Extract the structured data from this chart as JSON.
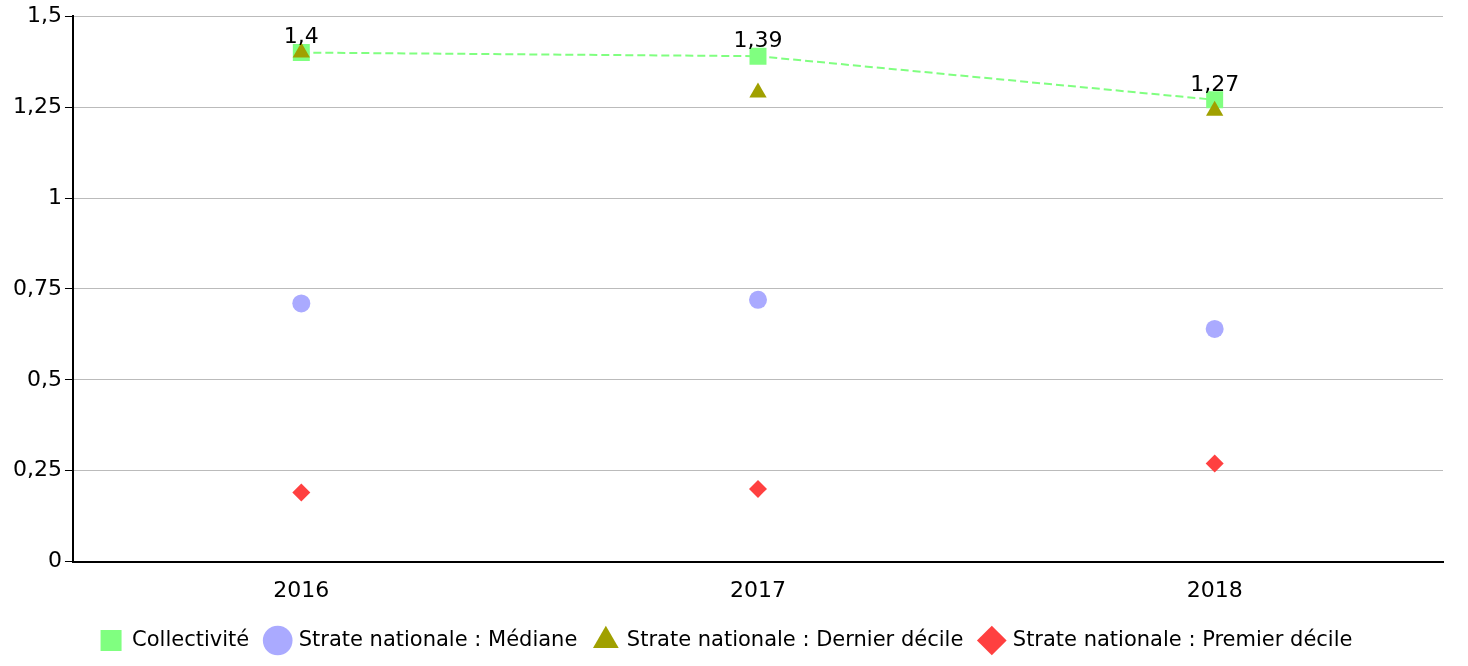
{
  "chart_data": {
    "type": "line",
    "categories": [
      "2016",
      "2017",
      "2018"
    ],
    "series": [
      {
        "name": "Collectivité",
        "color": "#80ff80",
        "marker": "square",
        "line_style": "dashed",
        "values": [
          1.4,
          1.39,
          1.27
        ],
        "value_labels": [
          "1,4",
          "1,39",
          "1,27"
        ]
      },
      {
        "name": "Strate nationale : Médiane",
        "type": "scatter",
        "color": "#aaaaff",
        "marker": "circle",
        "values": [
          0.71,
          0.72,
          0.64
        ]
      },
      {
        "name": "Strate nationale : Dernier décile",
        "type": "scatter",
        "color": "#a0a000",
        "marker": "triangle",
        "values": [
          1.4,
          1.29,
          1.24
        ]
      },
      {
        "name": "Strate nationale : Premier décile",
        "type": "scatter",
        "color": "#ff4040",
        "marker": "diamond",
        "values": [
          0.19,
          0.2,
          0.27
        ]
      }
    ],
    "ylim": [
      0,
      1.5
    ],
    "yticks": [
      0,
      {
        "value": 0.25,
        "label": "0,25"
      },
      {
        "value": 0.5,
        "label": "0,5"
      },
      {
        "value": 0.75,
        "label": "0,75"
      },
      1,
      {
        "value": 1.25,
        "label": "1,25"
      },
      {
        "value": 1.5,
        "label": "1,5"
      }
    ],
    "grid": "y",
    "legend": "bottom"
  }
}
